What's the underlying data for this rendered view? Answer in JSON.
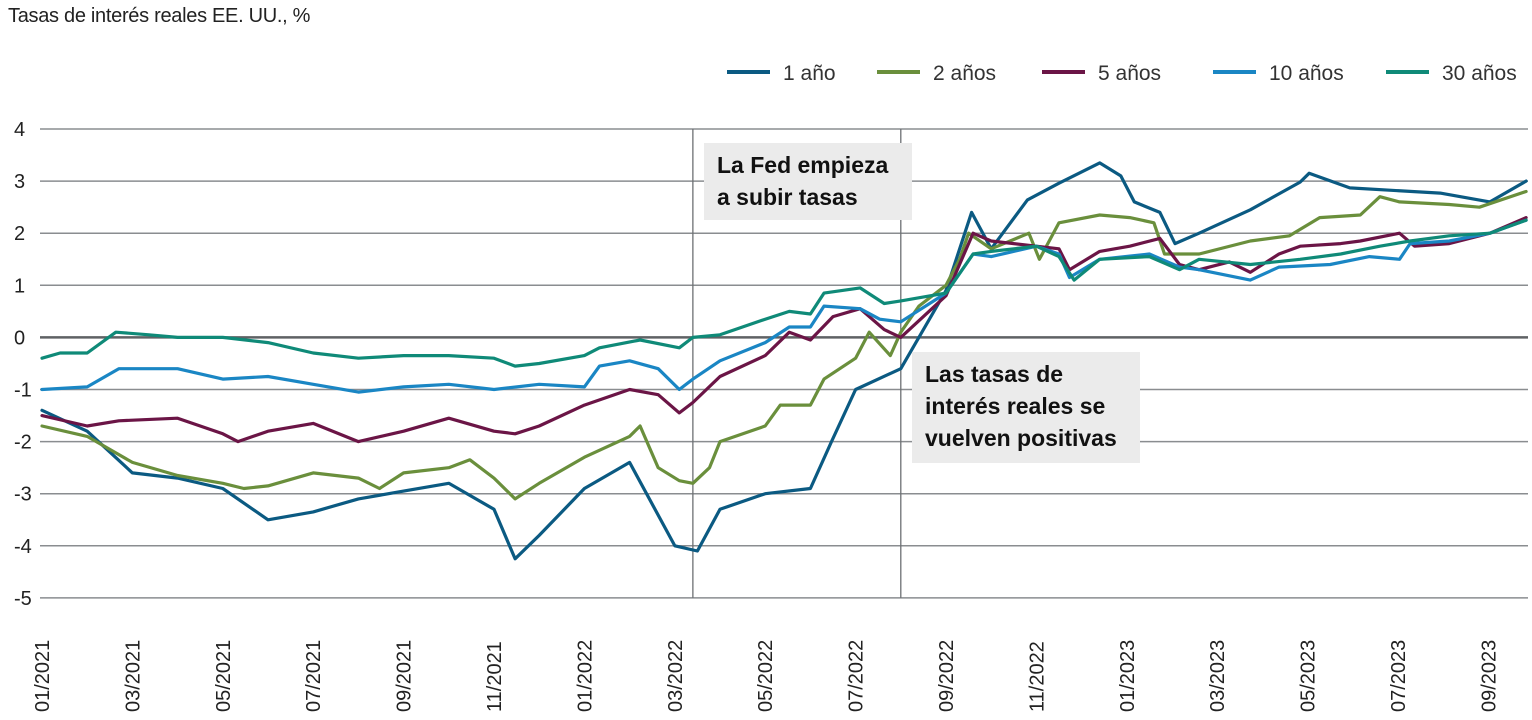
{
  "chart_data": {
    "type": "line",
    "title": "Tasas de interés reales EE. UU., %",
    "xlabel": "",
    "ylabel": "",
    "ylim": [
      -5,
      4
    ],
    "yticks": [
      4,
      3,
      2,
      1,
      0,
      -1,
      -2,
      -3,
      -4,
      -5
    ],
    "xlim": [
      "2021-01-01",
      "2023-09-26"
    ],
    "xticks": [
      "01/2021",
      "03/2021",
      "05/2021",
      "07/2021",
      "09/2021",
      "11/2021",
      "01/2022",
      "03/2022",
      "05/2022",
      "07/2022",
      "09/2022",
      "11/2022",
      "01/2023",
      "03/2023",
      "05/2023",
      "07/2023",
      "09/2023"
    ],
    "grid": "horizontal",
    "legend_position": "top-right",
    "series": [
      {
        "name": "1 año",
        "color": "#0b5a82",
        "points": [
          [
            "2021-01-01",
            -1.4
          ],
          [
            "2021-02-01",
            -1.8
          ],
          [
            "2021-03-01",
            -2.6
          ],
          [
            "2021-04-01",
            -2.7
          ],
          [
            "2021-05-01",
            -2.9
          ],
          [
            "2021-06-01",
            -3.5
          ],
          [
            "2021-07-01",
            -3.35
          ],
          [
            "2021-08-01",
            -3.1
          ],
          [
            "2021-09-01",
            -2.95
          ],
          [
            "2021-10-01",
            -2.8
          ],
          [
            "2021-11-01",
            -3.3
          ],
          [
            "2021-11-15",
            -4.25
          ],
          [
            "2021-12-01",
            -3.8
          ],
          [
            "2022-01-01",
            -2.9
          ],
          [
            "2022-02-01",
            -2.4
          ],
          [
            "2022-03-01",
            -4.0
          ],
          [
            "2022-03-16",
            -4.1
          ],
          [
            "2022-04-01",
            -3.3
          ],
          [
            "2022-05-01",
            -3.0
          ],
          [
            "2022-06-01",
            -2.9
          ],
          [
            "2022-06-15",
            -2.0
          ],
          [
            "2022-07-01",
            -1.0
          ],
          [
            "2022-08-01",
            -0.6
          ],
          [
            "2022-09-01",
            0.9
          ],
          [
            "2022-09-18",
            2.4
          ],
          [
            "2022-10-01",
            1.7
          ],
          [
            "2022-10-25",
            2.64
          ],
          [
            "2022-11-16",
            2.96
          ],
          [
            "2022-12-13",
            3.35
          ],
          [
            "2022-12-27",
            3.1
          ],
          [
            "2023-01-06",
            2.6
          ],
          [
            "2023-01-23",
            2.4
          ],
          [
            "2023-02-03",
            1.8
          ],
          [
            "2023-02-19",
            2.0
          ],
          [
            "2023-03-23",
            2.45
          ],
          [
            "2023-04-26",
            2.98
          ],
          [
            "2023-05-02",
            3.15
          ],
          [
            "2023-05-29",
            2.87
          ],
          [
            "2023-07-29",
            2.77
          ],
          [
            "2023-09-02",
            2.6
          ],
          [
            "2023-09-26",
            3.0
          ]
        ]
      },
      {
        "name": "2 años",
        "color": "#6a8f3c",
        "points": [
          [
            "2021-01-01",
            -1.7
          ],
          [
            "2021-02-01",
            -1.9
          ],
          [
            "2021-03-01",
            -2.4
          ],
          [
            "2021-04-01",
            -2.65
          ],
          [
            "2021-05-01",
            -2.8
          ],
          [
            "2021-05-15",
            -2.9
          ],
          [
            "2021-06-01",
            -2.85
          ],
          [
            "2021-07-01",
            -2.6
          ],
          [
            "2021-08-01",
            -2.7
          ],
          [
            "2021-08-15",
            -2.9
          ],
          [
            "2021-09-01",
            -2.6
          ],
          [
            "2021-10-01",
            -2.5
          ],
          [
            "2021-10-15",
            -2.35
          ],
          [
            "2021-11-01",
            -2.7
          ],
          [
            "2021-11-15",
            -3.1
          ],
          [
            "2021-12-01",
            -2.8
          ],
          [
            "2022-01-01",
            -2.3
          ],
          [
            "2022-02-01",
            -1.9
          ],
          [
            "2022-02-08",
            -1.7
          ],
          [
            "2022-02-20",
            -2.5
          ],
          [
            "2022-03-04",
            -2.75
          ],
          [
            "2022-03-13",
            -2.8
          ],
          [
            "2022-03-24",
            -2.5
          ],
          [
            "2022-04-01",
            -2.0
          ],
          [
            "2022-05-01",
            -1.7
          ],
          [
            "2022-05-11",
            -1.3
          ],
          [
            "2022-06-01",
            -1.3
          ],
          [
            "2022-06-10",
            -0.8
          ],
          [
            "2022-07-01",
            -0.4
          ],
          [
            "2022-07-10",
            0.1
          ],
          [
            "2022-07-24",
            -0.35
          ],
          [
            "2022-08-01",
            0.1
          ],
          [
            "2022-08-13",
            0.6
          ],
          [
            "2022-09-01",
            1.0
          ],
          [
            "2022-09-10",
            1.5
          ],
          [
            "2022-09-16",
            2.0
          ],
          [
            "2022-10-01",
            1.7
          ],
          [
            "2022-10-26",
            2.0
          ],
          [
            "2022-11-03",
            1.5
          ],
          [
            "2022-11-16",
            2.2
          ],
          [
            "2022-12-13",
            2.35
          ],
          [
            "2023-01-03",
            2.3
          ],
          [
            "2023-01-19",
            2.2
          ],
          [
            "2023-01-26",
            1.6
          ],
          [
            "2023-02-19",
            1.6
          ],
          [
            "2023-03-23",
            1.85
          ],
          [
            "2023-04-19",
            1.95
          ],
          [
            "2023-05-09",
            2.3
          ],
          [
            "2023-06-06",
            2.35
          ],
          [
            "2023-06-19",
            2.7
          ],
          [
            "2023-07-02",
            2.6
          ],
          [
            "2023-08-05",
            2.55
          ],
          [
            "2023-08-25",
            2.5
          ],
          [
            "2023-09-26",
            2.8
          ]
        ]
      },
      {
        "name": "5 años",
        "color": "#6b1546",
        "points": [
          [
            "2021-01-01",
            -1.5
          ],
          [
            "2021-02-01",
            -1.7
          ],
          [
            "2021-02-22",
            -1.6
          ],
          [
            "2021-04-01",
            -1.55
          ],
          [
            "2021-05-01",
            -1.85
          ],
          [
            "2021-05-11",
            -2.0
          ],
          [
            "2021-06-01",
            -1.8
          ],
          [
            "2021-07-01",
            -1.65
          ],
          [
            "2021-08-01",
            -2.0
          ],
          [
            "2021-09-01",
            -1.8
          ],
          [
            "2021-10-01",
            -1.55
          ],
          [
            "2021-11-01",
            -1.8
          ],
          [
            "2021-11-15",
            -1.85
          ],
          [
            "2021-12-01",
            -1.7
          ],
          [
            "2022-01-01",
            -1.3
          ],
          [
            "2022-02-01",
            -1.0
          ],
          [
            "2022-02-20",
            -1.1
          ],
          [
            "2022-03-04",
            -1.45
          ],
          [
            "2022-03-13",
            -1.25
          ],
          [
            "2022-04-01",
            -0.75
          ],
          [
            "2022-05-01",
            -0.35
          ],
          [
            "2022-05-17",
            0.1
          ],
          [
            "2022-06-01",
            -0.05
          ],
          [
            "2022-06-16",
            0.4
          ],
          [
            "2022-07-04",
            0.55
          ],
          [
            "2022-07-20",
            0.15
          ],
          [
            "2022-08-01",
            0.0
          ],
          [
            "2022-09-01",
            0.8
          ],
          [
            "2022-09-19",
            2.0
          ],
          [
            "2022-10-01",
            1.85
          ],
          [
            "2022-11-01",
            1.75
          ],
          [
            "2022-11-16",
            1.7
          ],
          [
            "2022-11-23",
            1.3
          ],
          [
            "2022-12-13",
            1.65
          ],
          [
            "2023-01-03",
            1.75
          ],
          [
            "2023-01-23",
            1.9
          ],
          [
            "2023-02-06",
            1.4
          ],
          [
            "2023-02-19",
            1.3
          ],
          [
            "2023-03-09",
            1.45
          ],
          [
            "2023-03-23",
            1.25
          ],
          [
            "2023-04-12",
            1.6
          ],
          [
            "2023-04-26",
            1.75
          ],
          [
            "2023-05-23",
            1.8
          ],
          [
            "2023-06-06",
            1.85
          ],
          [
            "2023-07-02",
            2.0
          ],
          [
            "2023-07-12",
            1.75
          ],
          [
            "2023-08-05",
            1.8
          ],
          [
            "2023-09-02",
            2.0
          ],
          [
            "2023-09-26",
            2.3
          ]
        ]
      },
      {
        "name": "10 años",
        "color": "#1a86c4",
        "points": [
          [
            "2021-01-01",
            -1.0
          ],
          [
            "2021-02-01",
            -0.95
          ],
          [
            "2021-02-22",
            -0.6
          ],
          [
            "2021-04-01",
            -0.6
          ],
          [
            "2021-05-01",
            -0.8
          ],
          [
            "2021-06-01",
            -0.75
          ],
          [
            "2021-07-01",
            -0.9
          ],
          [
            "2021-08-01",
            -1.05
          ],
          [
            "2021-09-01",
            -0.95
          ],
          [
            "2021-10-01",
            -0.9
          ],
          [
            "2021-11-01",
            -1.0
          ],
          [
            "2021-12-01",
            -0.9
          ],
          [
            "2022-01-01",
            -0.95
          ],
          [
            "2022-01-11",
            -0.55
          ],
          [
            "2022-02-01",
            -0.45
          ],
          [
            "2022-02-20",
            -0.6
          ],
          [
            "2022-03-04",
            -1.0
          ],
          [
            "2022-03-13",
            -0.8
          ],
          [
            "2022-04-01",
            -0.45
          ],
          [
            "2022-05-01",
            -0.1
          ],
          [
            "2022-05-17",
            0.2
          ],
          [
            "2022-06-01",
            0.2
          ],
          [
            "2022-06-10",
            0.6
          ],
          [
            "2022-07-04",
            0.55
          ],
          [
            "2022-07-17",
            0.35
          ],
          [
            "2022-08-01",
            0.3
          ],
          [
            "2022-09-01",
            0.85
          ],
          [
            "2022-09-19",
            1.6
          ],
          [
            "2022-10-01",
            1.55
          ],
          [
            "2022-11-01",
            1.75
          ],
          [
            "2022-11-16",
            1.6
          ],
          [
            "2022-11-23",
            1.15
          ],
          [
            "2022-12-13",
            1.5
          ],
          [
            "2023-01-16",
            1.6
          ],
          [
            "2023-02-06",
            1.35
          ],
          [
            "2023-02-19",
            1.3
          ],
          [
            "2023-03-23",
            1.1
          ],
          [
            "2023-04-12",
            1.35
          ],
          [
            "2023-05-16",
            1.4
          ],
          [
            "2023-06-12",
            1.55
          ],
          [
            "2023-07-02",
            1.5
          ],
          [
            "2023-07-09",
            1.8
          ],
          [
            "2023-08-05",
            1.85
          ],
          [
            "2023-09-02",
            2.0
          ],
          [
            "2023-09-26",
            2.25
          ]
        ]
      },
      {
        "name": "30 años",
        "color": "#0f8a78",
        "points": [
          [
            "2021-01-01",
            -0.4
          ],
          [
            "2021-01-13",
            -0.3
          ],
          [
            "2021-02-01",
            -0.3
          ],
          [
            "2021-02-20",
            0.1
          ],
          [
            "2021-03-12",
            0.05
          ],
          [
            "2021-04-01",
            0.0
          ],
          [
            "2021-05-01",
            0.0
          ],
          [
            "2021-06-01",
            -0.1
          ],
          [
            "2021-07-01",
            -0.3
          ],
          [
            "2021-08-01",
            -0.4
          ],
          [
            "2021-09-01",
            -0.35
          ],
          [
            "2021-10-01",
            -0.35
          ],
          [
            "2021-11-01",
            -0.4
          ],
          [
            "2021-11-15",
            -0.55
          ],
          [
            "2021-12-01",
            -0.5
          ],
          [
            "2022-01-01",
            -0.35
          ],
          [
            "2022-01-11",
            -0.2
          ],
          [
            "2022-02-08",
            -0.05
          ],
          [
            "2022-03-04",
            -0.2
          ],
          [
            "2022-03-13",
            0.0
          ],
          [
            "2022-04-01",
            0.05
          ],
          [
            "2022-05-01",
            0.35
          ],
          [
            "2022-05-17",
            0.5
          ],
          [
            "2022-06-01",
            0.45
          ],
          [
            "2022-06-10",
            0.85
          ],
          [
            "2022-07-04",
            0.95
          ],
          [
            "2022-07-20",
            0.65
          ],
          [
            "2022-08-01",
            0.7
          ],
          [
            "2022-09-01",
            0.85
          ],
          [
            "2022-09-19",
            1.6
          ],
          [
            "2022-10-01",
            1.65
          ],
          [
            "2022-11-01",
            1.75
          ],
          [
            "2022-11-16",
            1.55
          ],
          [
            "2022-11-26",
            1.1
          ],
          [
            "2022-12-13",
            1.5
          ],
          [
            "2023-01-16",
            1.55
          ],
          [
            "2023-02-06",
            1.3
          ],
          [
            "2023-02-19",
            1.5
          ],
          [
            "2023-03-23",
            1.4
          ],
          [
            "2023-04-26",
            1.5
          ],
          [
            "2023-05-23",
            1.6
          ],
          [
            "2023-06-19",
            1.75
          ],
          [
            "2023-07-09",
            1.85
          ],
          [
            "2023-08-05",
            1.95
          ],
          [
            "2023-09-02",
            2.0
          ],
          [
            "2023-09-26",
            2.25
          ]
        ]
      }
    ],
    "annotations": [
      {
        "date": "2022-03-13",
        "text_lines": [
          "La Fed empieza",
          "a subir tasas"
        ]
      },
      {
        "date": "2022-08-01",
        "text_lines": [
          "Las tasas de",
          "interés reales se",
          "vuelven positivas"
        ]
      }
    ]
  }
}
